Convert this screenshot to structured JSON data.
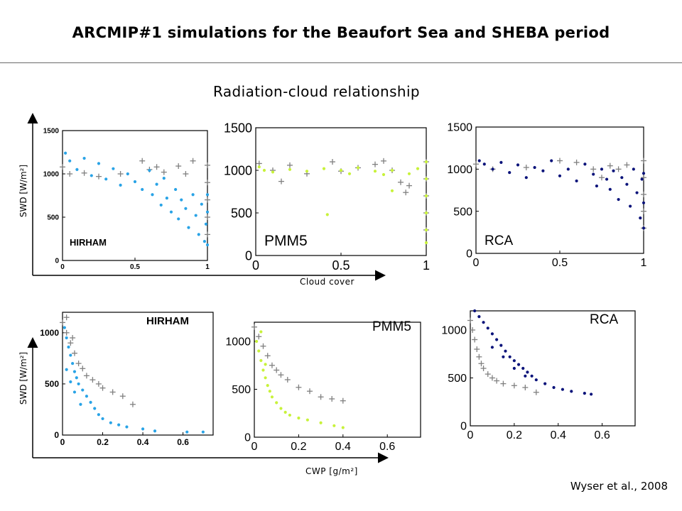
{
  "header": {
    "title": "ARCMIP#1 simulations for the Beaufort Sea and SHEBA period",
    "subtitle": "Radiation-cloud relationship"
  },
  "axes": {
    "top_ylabel": "SWD [W/m²]",
    "top_xlabel": "Cloud cover",
    "bottom_ylabel": "SWD [W/m²]",
    "bottom_xlabel": "CWP [g/m²]"
  },
  "citation": "Wyser et al., 2008",
  "colors": {
    "hirham": "#29a3e6",
    "pmm5": "#c8f23a",
    "rca": "#0a137a",
    "observations": "#808080"
  },
  "chart_data": [
    {
      "type": "scatter",
      "model": "HIRHAM",
      "x_var": "cloud cover",
      "y_var": "SWD",
      "xlim": [
        0,
        1
      ],
      "ylim": [
        0,
        1500
      ],
      "xticks": [
        "0",
        "0.5",
        "1"
      ],
      "yticks": [
        "0",
        "500",
        "1000",
        "1500"
      ],
      "model_points": [
        [
          0.02,
          1240
        ],
        [
          0.05,
          1150
        ],
        [
          0.1,
          1050
        ],
        [
          0.15,
          1180
        ],
        [
          0.2,
          980
        ],
        [
          0.25,
          1120
        ],
        [
          0.3,
          940
        ],
        [
          0.35,
          1060
        ],
        [
          0.4,
          870
        ],
        [
          0.45,
          1000
        ],
        [
          0.5,
          910
        ],
        [
          0.55,
          820
        ],
        [
          0.6,
          1040
        ],
        [
          0.62,
          760
        ],
        [
          0.65,
          880
        ],
        [
          0.68,
          640
        ],
        [
          0.7,
          950
        ],
        [
          0.72,
          720
        ],
        [
          0.75,
          560
        ],
        [
          0.78,
          820
        ],
        [
          0.8,
          480
        ],
        [
          0.82,
          700
        ],
        [
          0.85,
          600
        ],
        [
          0.87,
          380
        ],
        [
          0.9,
          760
        ],
        [
          0.92,
          520
        ],
        [
          0.94,
          300
        ],
        [
          0.96,
          650
        ],
        [
          0.98,
          220
        ],
        [
          0.99,
          420
        ],
        [
          1.0,
          180
        ],
        [
          1.0,
          560
        ],
        [
          1.0,
          760
        ]
      ],
      "obs_points": [
        [
          0.0,
          1080
        ],
        [
          0.05,
          1000
        ],
        [
          0.15,
          1010
        ],
        [
          0.25,
          970
        ],
        [
          0.4,
          1000
        ],
        [
          0.55,
          1150
        ],
        [
          0.6,
          1050
        ],
        [
          0.65,
          1080
        ],
        [
          0.7,
          1020
        ],
        [
          0.8,
          1090
        ],
        [
          0.85,
          1000
        ],
        [
          0.9,
          1150
        ],
        [
          1.0,
          1100
        ],
        [
          1.0,
          900
        ],
        [
          1.0,
          700
        ],
        [
          1.0,
          500
        ],
        [
          1.0,
          300
        ]
      ]
    },
    {
      "type": "scatter",
      "model": "PMM5",
      "x_var": "cloud cover",
      "y_var": "SWD",
      "xlim": [
        0,
        1
      ],
      "ylim": [
        0,
        1500
      ],
      "xticks": [
        "0",
        "0.5",
        "1"
      ],
      "yticks": [
        "0",
        "500",
        "1000",
        "1500"
      ],
      "model_points": [
        [
          0.02,
          1040
        ],
        [
          0.05,
          1000
        ],
        [
          0.1,
          980
        ],
        [
          0.2,
          1010
        ],
        [
          0.3,
          990
        ],
        [
          0.4,
          1020
        ],
        [
          0.5,
          1000
        ],
        [
          0.55,
          960
        ],
        [
          0.6,
          1030
        ],
        [
          0.7,
          990
        ],
        [
          0.75,
          950
        ],
        [
          0.8,
          1000
        ],
        [
          0.9,
          960
        ],
        [
          0.95,
          1020
        ],
        [
          0.42,
          480
        ],
        [
          0.8,
          760
        ],
        [
          1.0,
          1100
        ],
        [
          1.0,
          900
        ],
        [
          1.0,
          700
        ],
        [
          1.0,
          500
        ],
        [
          1.0,
          300
        ],
        [
          1.0,
          150
        ]
      ],
      "obs_points": [
        [
          0.02,
          1080
        ],
        [
          0.1,
          1000
        ],
        [
          0.15,
          870
        ],
        [
          0.2,
          1060
        ],
        [
          0.3,
          960
        ],
        [
          0.45,
          1100
        ],
        [
          0.5,
          990
        ],
        [
          0.6,
          1030
        ],
        [
          0.7,
          1070
        ],
        [
          0.75,
          1110
        ],
        [
          0.8,
          1000
        ],
        [
          0.85,
          860
        ],
        [
          0.88,
          740
        ],
        [
          0.9,
          820
        ],
        [
          1.0,
          1100
        ],
        [
          1.0,
          900
        ],
        [
          1.0,
          700
        ],
        [
          1.0,
          500
        ],
        [
          1.0,
          300
        ]
      ]
    },
    {
      "type": "scatter",
      "model": "RCA",
      "x_var": "cloud cover",
      "y_var": "SWD",
      "xlim": [
        0,
        1
      ],
      "ylim": [
        0,
        1500
      ],
      "xticks": [
        "0",
        "0.5",
        "1"
      ],
      "yticks": [
        "0",
        "500",
        "1000",
        "1500"
      ],
      "model_points": [
        [
          0.02,
          1100
        ],
        [
          0.05,
          1060
        ],
        [
          0.1,
          1000
        ],
        [
          0.15,
          1080
        ],
        [
          0.2,
          960
        ],
        [
          0.25,
          1050
        ],
        [
          0.3,
          900
        ],
        [
          0.35,
          1020
        ],
        [
          0.4,
          980
        ],
        [
          0.45,
          1100
        ],
        [
          0.5,
          920
        ],
        [
          0.55,
          1000
        ],
        [
          0.6,
          860
        ],
        [
          0.65,
          1060
        ],
        [
          0.7,
          940
        ],
        [
          0.72,
          800
        ],
        [
          0.75,
          1000
        ],
        [
          0.78,
          880
        ],
        [
          0.8,
          760
        ],
        [
          0.82,
          980
        ],
        [
          0.85,
          640
        ],
        [
          0.87,
          900
        ],
        [
          0.9,
          820
        ],
        [
          0.92,
          560
        ],
        [
          0.94,
          1000
        ],
        [
          0.96,
          720
        ],
        [
          0.98,
          420
        ],
        [
          0.99,
          880
        ],
        [
          1.0,
          300
        ],
        [
          1.0,
          600
        ],
        [
          1.0,
          950
        ]
      ],
      "obs_points": [
        [
          0.0,
          1060
        ],
        [
          0.1,
          1000
        ],
        [
          0.3,
          1020
        ],
        [
          0.5,
          1100
        ],
        [
          0.6,
          1080
        ],
        [
          0.7,
          1000
        ],
        [
          0.75,
          900
        ],
        [
          0.8,
          1040
        ],
        [
          0.85,
          1000
        ],
        [
          0.9,
          1050
        ],
        [
          1.0,
          1100
        ],
        [
          1.0,
          900
        ],
        [
          1.0,
          700
        ],
        [
          1.0,
          500
        ],
        [
          1.0,
          300
        ]
      ]
    },
    {
      "type": "scatter",
      "model": "HIRHAM",
      "x_var": "CWP",
      "y_var": "SWD",
      "xlim": [
        0,
        0.75
      ],
      "ylim": [
        0,
        1200
      ],
      "xticks": [
        "0",
        "0.2",
        "0.4",
        "0.6"
      ],
      "yticks": [
        "0",
        "500",
        "1000"
      ],
      "model_points": [
        [
          0.01,
          1050
        ],
        [
          0.02,
          950
        ],
        [
          0.03,
          860
        ],
        [
          0.04,
          780
        ],
        [
          0.05,
          700
        ],
        [
          0.06,
          620
        ],
        [
          0.07,
          560
        ],
        [
          0.08,
          500
        ],
        [
          0.1,
          440
        ],
        [
          0.12,
          380
        ],
        [
          0.14,
          320
        ],
        [
          0.16,
          260
        ],
        [
          0.18,
          200
        ],
        [
          0.2,
          160
        ],
        [
          0.24,
          120
        ],
        [
          0.28,
          100
        ],
        [
          0.32,
          80
        ],
        [
          0.4,
          60
        ],
        [
          0.46,
          40
        ],
        [
          0.62,
          30
        ],
        [
          0.7,
          30
        ],
        [
          0.02,
          640
        ],
        [
          0.04,
          520
        ],
        [
          0.06,
          420
        ],
        [
          0.09,
          300
        ]
      ],
      "obs_points": [
        [
          0.0,
          1100
        ],
        [
          0.02,
          1000
        ],
        [
          0.04,
          900
        ],
        [
          0.06,
          800
        ],
        [
          0.08,
          700
        ],
        [
          0.1,
          650
        ],
        [
          0.12,
          580
        ],
        [
          0.15,
          540
        ],
        [
          0.18,
          500
        ],
        [
          0.2,
          460
        ],
        [
          0.25,
          420
        ],
        [
          0.3,
          380
        ],
        [
          0.35,
          300
        ],
        [
          0.02,
          1150
        ],
        [
          0.05,
          950
        ]
      ]
    },
    {
      "type": "scatter",
      "model": "PMM5",
      "x_var": "CWP",
      "y_var": "SWD",
      "xlim": [
        0,
        0.75
      ],
      "ylim": [
        0,
        1200
      ],
      "xticks": [
        "0",
        "0.2",
        "0.4",
        "0.6"
      ],
      "yticks": [
        "0",
        "500",
        "1000"
      ],
      "model_points": [
        [
          0.01,
          1000
        ],
        [
          0.02,
          900
        ],
        [
          0.03,
          800
        ],
        [
          0.04,
          700
        ],
        [
          0.05,
          620
        ],
        [
          0.06,
          540
        ],
        [
          0.07,
          480
        ],
        [
          0.08,
          420
        ],
        [
          0.1,
          360
        ],
        [
          0.12,
          300
        ],
        [
          0.14,
          260
        ],
        [
          0.16,
          230
        ],
        [
          0.2,
          200
        ],
        [
          0.24,
          180
        ],
        [
          0.3,
          150
        ],
        [
          0.36,
          120
        ],
        [
          0.4,
          100
        ],
        [
          0.03,
          1100
        ],
        [
          0.05,
          760
        ]
      ],
      "obs_points": [
        [
          0.0,
          1150
        ],
        [
          0.02,
          1050
        ],
        [
          0.04,
          950
        ],
        [
          0.06,
          850
        ],
        [
          0.08,
          750
        ],
        [
          0.1,
          700
        ],
        [
          0.12,
          650
        ],
        [
          0.15,
          600
        ],
        [
          0.2,
          520
        ],
        [
          0.25,
          480
        ],
        [
          0.3,
          420
        ],
        [
          0.35,
          400
        ],
        [
          0.4,
          380
        ]
      ]
    },
    {
      "type": "scatter",
      "model": "RCA",
      "x_var": "CWP",
      "y_var": "SWD",
      "xlim": [
        0,
        0.75
      ],
      "ylim": [
        0,
        1200
      ],
      "xticks": [
        "0",
        "0.2",
        "0.4",
        "0.6"
      ],
      "yticks": [
        "0",
        "500",
        "1000"
      ],
      "model_points": [
        [
          0.02,
          1200
        ],
        [
          0.04,
          1140
        ],
        [
          0.06,
          1080
        ],
        [
          0.08,
          1020
        ],
        [
          0.1,
          960
        ],
        [
          0.12,
          900
        ],
        [
          0.14,
          840
        ],
        [
          0.16,
          780
        ],
        [
          0.18,
          720
        ],
        [
          0.2,
          680
        ],
        [
          0.22,
          640
        ],
        [
          0.24,
          600
        ],
        [
          0.26,
          560
        ],
        [
          0.28,
          520
        ],
        [
          0.3,
          480
        ],
        [
          0.34,
          440
        ],
        [
          0.38,
          400
        ],
        [
          0.42,
          380
        ],
        [
          0.46,
          360
        ],
        [
          0.52,
          340
        ],
        [
          0.55,
          330
        ],
        [
          0.1,
          820
        ],
        [
          0.15,
          720
        ],
        [
          0.2,
          600
        ],
        [
          0.25,
          520
        ]
      ],
      "obs_points": [
        [
          0.0,
          1100
        ],
        [
          0.01,
          1000
        ],
        [
          0.02,
          900
        ],
        [
          0.03,
          800
        ],
        [
          0.04,
          720
        ],
        [
          0.05,
          650
        ],
        [
          0.06,
          600
        ],
        [
          0.08,
          540
        ],
        [
          0.1,
          500
        ],
        [
          0.12,
          470
        ],
        [
          0.15,
          440
        ],
        [
          0.2,
          420
        ],
        [
          0.25,
          400
        ],
        [
          0.3,
          350
        ]
      ]
    }
  ]
}
